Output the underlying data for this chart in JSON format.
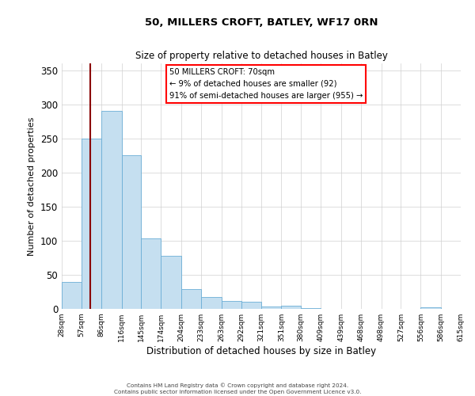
{
  "title": "50, MILLERS CROFT, BATLEY, WF17 0RN",
  "subtitle": "Size of property relative to detached houses in Batley",
  "xlabel": "Distribution of detached houses by size in Batley",
  "ylabel": "Number of detached properties",
  "footer_line1": "Contains HM Land Registry data © Crown copyright and database right 2024.",
  "footer_line2": "Contains public sector information licensed under the Open Government Licence v3.0.",
  "bin_edges": [
    28,
    57,
    86,
    116,
    145,
    174,
    204,
    233,
    263,
    292,
    321,
    351,
    380,
    409,
    439,
    468,
    498,
    527,
    556,
    586,
    615
  ],
  "bar_heights": [
    40,
    250,
    290,
    225,
    103,
    78,
    29,
    17,
    12,
    10,
    4,
    5,
    1,
    0,
    0,
    0,
    0,
    0,
    2,
    0
  ],
  "bar_color": "#c5dff0",
  "bar_edge_color": "#6baed6",
  "red_line_x": 70,
  "ylim": [
    0,
    360
  ],
  "yticks": [
    0,
    50,
    100,
    150,
    200,
    250,
    300,
    350
  ],
  "annotation_title": "50 MILLERS CROFT: 70sqm",
  "annotation_line2": "← 9% of detached houses are smaller (92)",
  "annotation_line3": "91% of semi-detached houses are larger (955) →",
  "annotation_box_color": "white",
  "annotation_border_color": "red"
}
